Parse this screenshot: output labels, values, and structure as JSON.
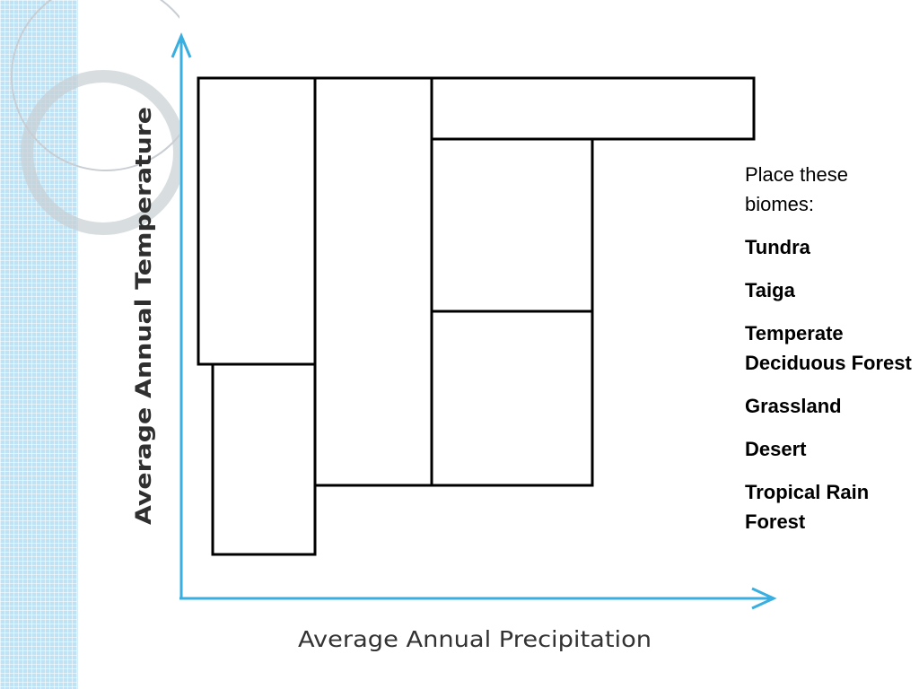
{
  "diagram": {
    "y_axis_label": "Average Annual Temperature",
    "x_axis_label": "Average Annual Precipitation"
  },
  "panel": {
    "prompt": "Place these biomes:",
    "biomes": [
      "Tundra",
      "Taiga",
      "Temperate Deciduous Forest",
      "Grassland",
      "Desert",
      "Tropical Rain Forest"
    ]
  },
  "colors": {
    "axis": "#39aee0",
    "box_stroke": "#000000",
    "strip": "#bfe3f5"
  }
}
